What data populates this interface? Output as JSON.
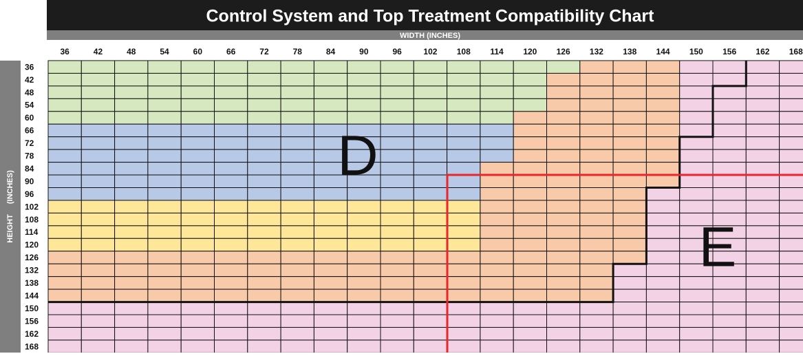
{
  "title": "Control System and Top Treatment Compatibility Chart",
  "x_axis_label": "WIDTH (INCHES)",
  "y_axis_label": "HEIGHT (INCHES)",
  "widths": [
    36,
    42,
    48,
    54,
    60,
    66,
    72,
    78,
    84,
    90,
    96,
    102,
    108,
    114,
    120,
    126,
    132,
    138,
    144,
    150,
    156,
    162,
    168
  ],
  "heights": [
    36,
    42,
    48,
    54,
    60,
    66,
    72,
    78,
    84,
    90,
    96,
    102,
    108,
    114,
    120,
    126,
    132,
    138,
    144,
    150,
    156,
    162,
    168
  ],
  "region_labels": [
    "D",
    "E"
  ],
  "cells": [
    [
      "#d5e8bf",
      "#d5e8bf",
      "#d5e8bf",
      "#d5e8bf",
      "#d5e8bf",
      "#d5e8bf",
      "#d5e8bf",
      "#d5e8bf",
      "#d5e8bf",
      "#d5e8bf",
      "#d5e8bf",
      "#d5e8bf",
      "#d5e8bf",
      "#d5e8bf",
      "#d5e8bf",
      "#d5e8bf",
      "#f9caa9",
      "#f9caa9",
      "#f9caa9",
      "#f3d2e5",
      "#f3d2e5",
      "#f3d2e5",
      "#f3d2e5"
    ],
    [
      "#d5e8bf",
      "#d5e8bf",
      "#d5e8bf",
      "#d5e8bf",
      "#d5e8bf",
      "#d5e8bf",
      "#d5e8bf",
      "#d5e8bf",
      "#d5e8bf",
      "#d5e8bf",
      "#d5e8bf",
      "#d5e8bf",
      "#d5e8bf",
      "#d5e8bf",
      "#d5e8bf",
      "#f9caa9",
      "#f9caa9",
      "#f9caa9",
      "#f9caa9",
      "#f3d2e5",
      "#f3d2e5",
      "#f3d2e5",
      "#f3d2e5"
    ],
    [
      "#d5e8bf",
      "#d5e8bf",
      "#d5e8bf",
      "#d5e8bf",
      "#d5e8bf",
      "#d5e8bf",
      "#d5e8bf",
      "#d5e8bf",
      "#d5e8bf",
      "#d5e8bf",
      "#d5e8bf",
      "#d5e8bf",
      "#d5e8bf",
      "#d5e8bf",
      "#d5e8bf",
      "#f9caa9",
      "#f9caa9",
      "#f9caa9",
      "#f9caa9",
      "#f3d2e5",
      "#f3d2e5",
      "#f3d2e5",
      "#f3d2e5"
    ],
    [
      "#d5e8bf",
      "#d5e8bf",
      "#d5e8bf",
      "#d5e8bf",
      "#d5e8bf",
      "#d5e8bf",
      "#d5e8bf",
      "#d5e8bf",
      "#d5e8bf",
      "#d5e8bf",
      "#d5e8bf",
      "#d5e8bf",
      "#d5e8bf",
      "#d5e8bf",
      "#d5e8bf",
      "#f9caa9",
      "#f9caa9",
      "#f9caa9",
      "#f9caa9",
      "#f3d2e5",
      "#f3d2e5",
      "#f3d2e5",
      "#f3d2e5"
    ],
    [
      "#d5e8bf",
      "#d5e8bf",
      "#d5e8bf",
      "#d5e8bf",
      "#d5e8bf",
      "#d5e8bf",
      "#d5e8bf",
      "#d5e8bf",
      "#d5e8bf",
      "#d5e8bf",
      "#d5e8bf",
      "#d5e8bf",
      "#d5e8bf",
      "#d5e8bf",
      "#f9caa9",
      "#f9caa9",
      "#f9caa9",
      "#f9caa9",
      "#f9caa9",
      "#f3d2e5",
      "#f3d2e5",
      "#f3d2e5",
      "#f3d2e5"
    ],
    [
      "#b8c9e8",
      "#b8c9e8",
      "#b8c9e8",
      "#b8c9e8",
      "#b8c9e8",
      "#b8c9e8",
      "#b8c9e8",
      "#b8c9e8",
      "#b8c9e8",
      "#b8c9e8",
      "#b8c9e8",
      "#b8c9e8",
      "#b8c9e8",
      "#b8c9e8",
      "#f9caa9",
      "#f9caa9",
      "#f9caa9",
      "#f9caa9",
      "#f9caa9",
      "#f3d2e5",
      "#f3d2e5",
      "#f3d2e5",
      "#f3d2e5"
    ],
    [
      "#b8c9e8",
      "#b8c9e8",
      "#b8c9e8",
      "#b8c9e8",
      "#b8c9e8",
      "#b8c9e8",
      "#b8c9e8",
      "#b8c9e8",
      "#b8c9e8",
      "#b8c9e8",
      "#b8c9e8",
      "#b8c9e8",
      "#b8c9e8",
      "#b8c9e8",
      "#f9caa9",
      "#f9caa9",
      "#f9caa9",
      "#f9caa9",
      "#f9caa9",
      "#f3d2e5",
      "#f3d2e5",
      "#f3d2e5",
      "#f3d2e5"
    ],
    [
      "#b8c9e8",
      "#b8c9e8",
      "#b8c9e8",
      "#b8c9e8",
      "#b8c9e8",
      "#b8c9e8",
      "#b8c9e8",
      "#b8c9e8",
      "#b8c9e8",
      "#b8c9e8",
      "#b8c9e8",
      "#b8c9e8",
      "#b8c9e8",
      "#b8c9e8",
      "#f9caa9",
      "#f9caa9",
      "#f9caa9",
      "#f9caa9",
      "#f9caa9",
      "#f3d2e5",
      "#f3d2e5",
      "#f3d2e5",
      "#f3d2e5"
    ],
    [
      "#b8c9e8",
      "#b8c9e8",
      "#b8c9e8",
      "#b8c9e8",
      "#b8c9e8",
      "#b8c9e8",
      "#b8c9e8",
      "#b8c9e8",
      "#b8c9e8",
      "#b8c9e8",
      "#b8c9e8",
      "#b8c9e8",
      "#b8c9e8",
      "#f9caa9",
      "#f9caa9",
      "#f9caa9",
      "#f9caa9",
      "#f9caa9",
      "#f9caa9",
      "#f3d2e5",
      "#f3d2e5",
      "#f3d2e5",
      "#f3d2e5"
    ],
    [
      "#b8c9e8",
      "#b8c9e8",
      "#b8c9e8",
      "#b8c9e8",
      "#b8c9e8",
      "#b8c9e8",
      "#b8c9e8",
      "#b8c9e8",
      "#b8c9e8",
      "#b8c9e8",
      "#b8c9e8",
      "#b8c9e8",
      "#b8c9e8",
      "#f9caa9",
      "#f9caa9",
      "#f9caa9",
      "#f9caa9",
      "#f9caa9",
      "#f9caa9",
      "#f3d2e5",
      "#f3d2e5",
      "#f3d2e5",
      "#f3d2e5"
    ],
    [
      "#b8c9e8",
      "#b8c9e8",
      "#b8c9e8",
      "#b8c9e8",
      "#b8c9e8",
      "#b8c9e8",
      "#b8c9e8",
      "#b8c9e8",
      "#b8c9e8",
      "#b8c9e8",
      "#b8c9e8",
      "#b8c9e8",
      "#b8c9e8",
      "#f9caa9",
      "#f9caa9",
      "#f9caa9",
      "#f9caa9",
      "#f9caa9",
      "#f3d2e5",
      "#f3d2e5",
      "#f3d2e5",
      "#f3d2e5",
      "#f3d2e5"
    ],
    [
      "#fee799",
      "#fee799",
      "#fee799",
      "#fee799",
      "#fee799",
      "#fee799",
      "#fee799",
      "#fee799",
      "#fee799",
      "#fee799",
      "#fee799",
      "#fee799",
      "#fee799",
      "#f9caa9",
      "#f9caa9",
      "#f9caa9",
      "#f9caa9",
      "#f9caa9",
      "#f3d2e5",
      "#f3d2e5",
      "#f3d2e5",
      "#f3d2e5",
      "#f3d2e5"
    ],
    [
      "#fee799",
      "#fee799",
      "#fee799",
      "#fee799",
      "#fee799",
      "#fee799",
      "#fee799",
      "#fee799",
      "#fee799",
      "#fee799",
      "#fee799",
      "#fee799",
      "#fee799",
      "#f9caa9",
      "#f9caa9",
      "#f9caa9",
      "#f9caa9",
      "#f9caa9",
      "#f3d2e5",
      "#f3d2e5",
      "#f3d2e5",
      "#f3d2e5",
      "#f3d2e5"
    ],
    [
      "#fee799",
      "#fee799",
      "#fee799",
      "#fee799",
      "#fee799",
      "#fee799",
      "#fee799",
      "#fee799",
      "#fee799",
      "#fee799",
      "#fee799",
      "#fee799",
      "#fee799",
      "#f9caa9",
      "#f9caa9",
      "#f9caa9",
      "#f9caa9",
      "#f9caa9",
      "#f3d2e5",
      "#f3d2e5",
      "#f3d2e5",
      "#f3d2e5",
      "#f3d2e5"
    ],
    [
      "#fee799",
      "#fee799",
      "#fee799",
      "#fee799",
      "#fee799",
      "#fee799",
      "#fee799",
      "#fee799",
      "#fee799",
      "#fee799",
      "#fee799",
      "#fee799",
      "#fee799",
      "#f9caa9",
      "#f9caa9",
      "#f9caa9",
      "#f9caa9",
      "#f9caa9",
      "#f3d2e5",
      "#f3d2e5",
      "#f3d2e5",
      "#f3d2e5",
      "#f3d2e5"
    ],
    [
      "#f9caa9",
      "#f9caa9",
      "#f9caa9",
      "#f9caa9",
      "#f9caa9",
      "#f9caa9",
      "#f9caa9",
      "#f9caa9",
      "#f9caa9",
      "#f9caa9",
      "#f9caa9",
      "#f9caa9",
      "#f9caa9",
      "#f9caa9",
      "#f9caa9",
      "#f9caa9",
      "#f9caa9",
      "#f9caa9",
      "#f3d2e5",
      "#f3d2e5",
      "#f3d2e5",
      "#f3d2e5",
      "#f3d2e5"
    ],
    [
      "#f9caa9",
      "#f9caa9",
      "#f9caa9",
      "#f9caa9",
      "#f9caa9",
      "#f9caa9",
      "#f9caa9",
      "#f9caa9",
      "#f9caa9",
      "#f9caa9",
      "#f9caa9",
      "#f9caa9",
      "#f9caa9",
      "#f9caa9",
      "#f9caa9",
      "#f9caa9",
      "#f9caa9",
      "#f3d2e5",
      "#f3d2e5",
      "#f3d2e5",
      "#f3d2e5",
      "#f3d2e5",
      "#f3d2e5"
    ],
    [
      "#f9caa9",
      "#f9caa9",
      "#f9caa9",
      "#f9caa9",
      "#f9caa9",
      "#f9caa9",
      "#f9caa9",
      "#f9caa9",
      "#f9caa9",
      "#f9caa9",
      "#f9caa9",
      "#f9caa9",
      "#f9caa9",
      "#f9caa9",
      "#f9caa9",
      "#f9caa9",
      "#f9caa9",
      "#f3d2e5",
      "#f3d2e5",
      "#f3d2e5",
      "#f3d2e5",
      "#f3d2e5",
      "#f3d2e5"
    ],
    [
      "#f9caa9",
      "#f9caa9",
      "#f9caa9",
      "#f9caa9",
      "#f9caa9",
      "#f9caa9",
      "#f9caa9",
      "#f9caa9",
      "#f9caa9",
      "#f9caa9",
      "#f9caa9",
      "#f9caa9",
      "#f9caa9",
      "#f9caa9",
      "#f9caa9",
      "#f9caa9",
      "#f9caa9",
      "#f3d2e5",
      "#f3d2e5",
      "#f3d2e5",
      "#f3d2e5",
      "#f3d2e5",
      "#f3d2e5"
    ],
    [
      "#f3d2e5",
      "#f3d2e5",
      "#f3d2e5",
      "#f3d2e5",
      "#f3d2e5",
      "#f3d2e5",
      "#f3d2e5",
      "#f3d2e5",
      "#f3d2e5",
      "#f3d2e5",
      "#f3d2e5",
      "#f3d2e5",
      "#f3d2e5",
      "#f3d2e5",
      "#f3d2e5",
      "#f3d2e5",
      "#f3d2e5",
      "#f3d2e5",
      "#f3d2e5",
      "#f3d2e5",
      "#f3d2e5",
      "#f3d2e5",
      "#f3d2e5"
    ],
    [
      "#f3d2e5",
      "#f3d2e5",
      "#f3d2e5",
      "#f3d2e5",
      "#f3d2e5",
      "#f3d2e5",
      "#f3d2e5",
      "#f3d2e5",
      "#f3d2e5",
      "#f3d2e5",
      "#f3d2e5",
      "#f3d2e5",
      "#f3d2e5",
      "#f3d2e5",
      "#f3d2e5",
      "#f3d2e5",
      "#f3d2e5",
      "#f3d2e5",
      "#f3d2e5",
      "#f3d2e5",
      "#f3d2e5",
      "#f3d2e5",
      "#f3d2e5"
    ],
    [
      "#f3d2e5",
      "#f3d2e5",
      "#f3d2e5",
      "#f3d2e5",
      "#f3d2e5",
      "#f3d2e5",
      "#f3d2e5",
      "#f3d2e5",
      "#f3d2e5",
      "#f3d2e5",
      "#f3d2e5",
      "#f3d2e5",
      "#f3d2e5",
      "#f3d2e5",
      "#f3d2e5",
      "#f3d2e5",
      "#f3d2e5",
      "#f3d2e5",
      "#f3d2e5",
      "#f3d2e5",
      "#f3d2e5",
      "#f3d2e5",
      "#f3d2e5"
    ],
    [
      "#f3d2e5",
      "#f3d2e5",
      "#f3d2e5",
      "#f3d2e5",
      "#f3d2e5",
      "#f3d2e5",
      "#f3d2e5",
      "#f3d2e5",
      "#f3d2e5",
      "#f3d2e5",
      "#f3d2e5",
      "#f3d2e5",
      "#f3d2e5",
      "#f3d2e5",
      "#f3d2e5",
      "#f3d2e5",
      "#f3d2e5",
      "#f3d2e5",
      "#f3d2e5",
      "#f3d2e5",
      "#f3d2e5",
      "#f3d2e5",
      "#f3d2e5"
    ]
  ]
}
